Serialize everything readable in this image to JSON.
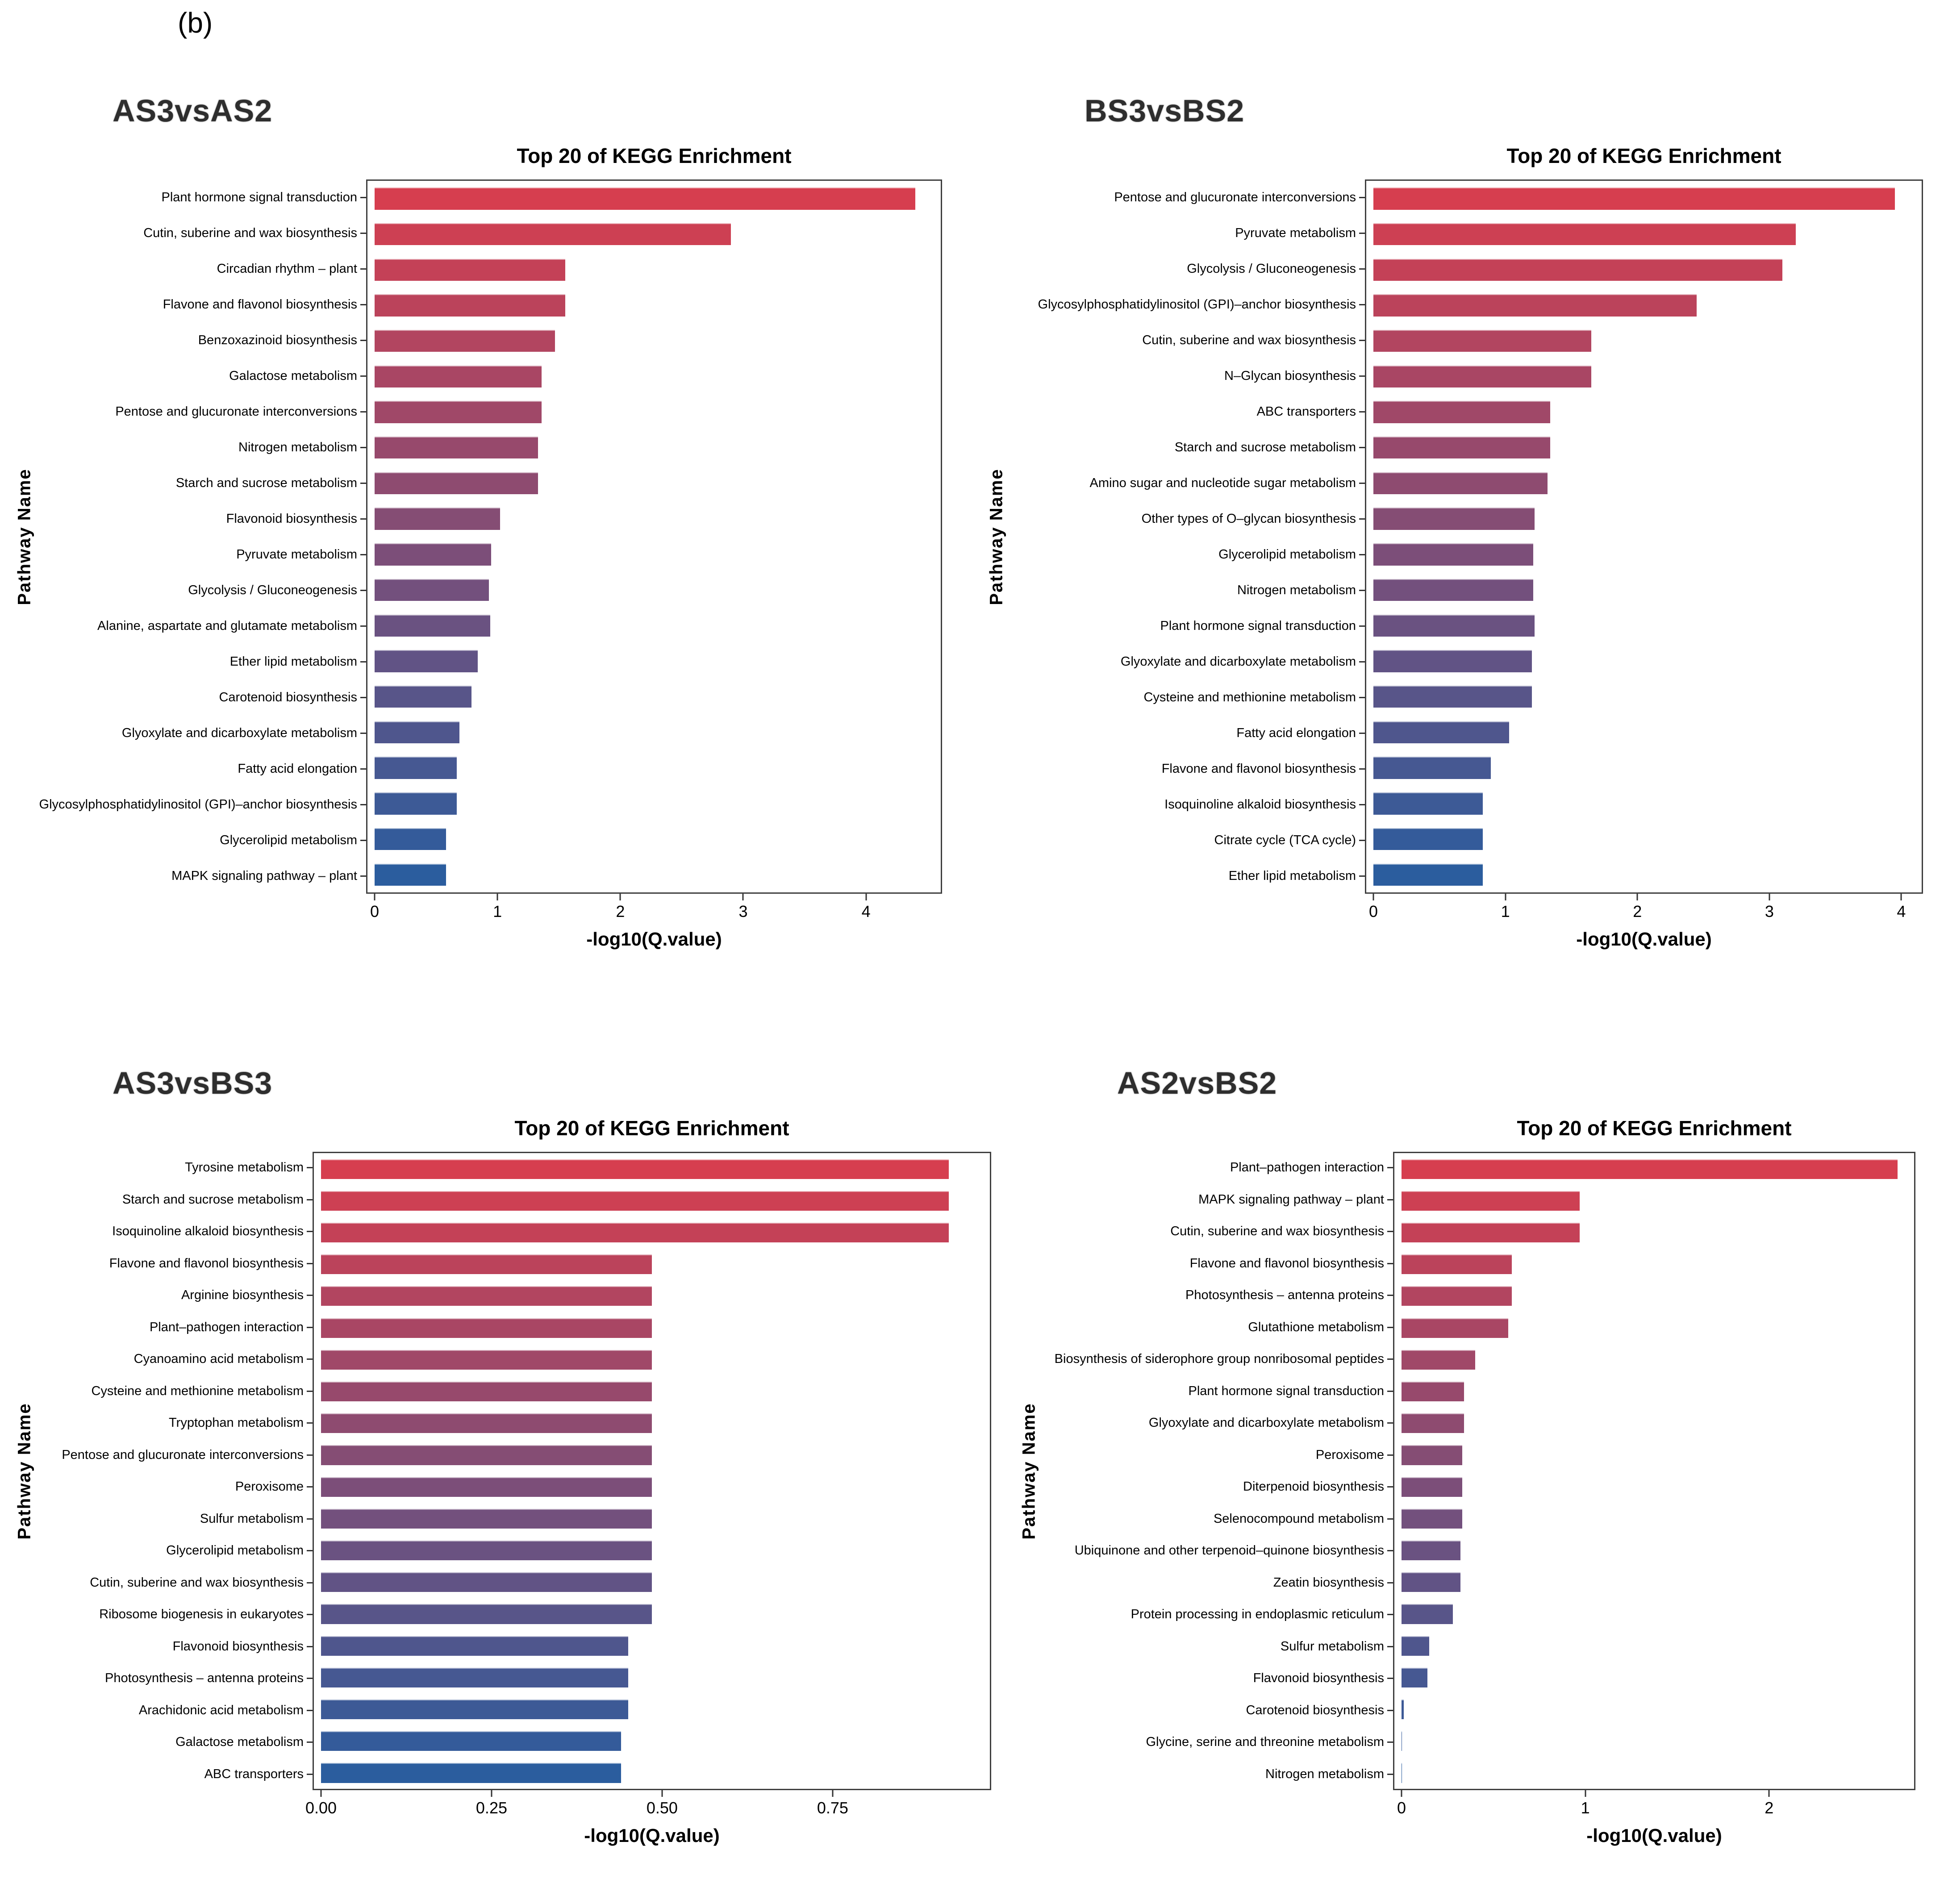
{
  "figure_label": "(b)",
  "palette": {
    "bar_gradient_high": "#d63e4f",
    "bar_gradient_low": "#2b5d9e",
    "panel_border": "#3f3f3f"
  },
  "chart_data": [
    {
      "type": "bar",
      "orientation": "horizontal",
      "comparison": "AS3vsAS2",
      "title": "Top 20 of KEGG Enrichment",
      "xlabel": "-log10(Q.value)",
      "ylabel": "Pathway Name",
      "xlim": [
        0,
        4.55
      ],
      "grid": false,
      "xticks": {
        "values": [
          0,
          1,
          2,
          3,
          4
        ],
        "labels": [
          "0",
          "1",
          "2",
          "3",
          "4"
        ]
      },
      "categories": [
        "Plant hormone signal transduction",
        "Cutin, suberine and wax biosynthesis",
        "Circadian rhythm – plant",
        "Flavone and flavonol biosynthesis",
        "Benzoxazinoid biosynthesis",
        "Galactose metabolism",
        "Pentose and glucuronate interconversions",
        "Nitrogen metabolism",
        "Starch and sucrose metabolism",
        "Flavonoid biosynthesis",
        "Pyruvate metabolism",
        "Glycolysis / Gluconeogenesis",
        "Alanine, aspartate and glutamate metabolism",
        "Ether lipid metabolism",
        "Carotenoid biosynthesis",
        "Glyoxylate and dicarboxylate metabolism",
        "Fatty acid elongation",
        "Glycosylphosphatidylinositol (GPI)–anchor biosynthesis",
        "Glycerolipid metabolism",
        "MAPK signaling pathway – plant"
      ],
      "values": [
        4.4,
        2.9,
        1.55,
        1.55,
        1.47,
        1.36,
        1.36,
        1.33,
        1.33,
        1.02,
        0.95,
        0.93,
        0.94,
        0.84,
        0.79,
        0.69,
        0.67,
        0.67,
        0.58,
        0.58
      ]
    },
    {
      "type": "bar",
      "orientation": "horizontal",
      "comparison": "BS3vsBS2",
      "title": "Top 20 of KEGG Enrichment",
      "xlabel": "-log10(Q.value)",
      "ylabel": "Pathway Name",
      "xlim": [
        0,
        4.1
      ],
      "grid": false,
      "xticks": {
        "values": [
          0,
          1,
          2,
          3,
          4
        ],
        "labels": [
          "0",
          "1",
          "2",
          "3",
          "4"
        ]
      },
      "categories": [
        "Pentose and glucuronate interconversions",
        "Pyruvate metabolism",
        "Glycolysis / Gluconeogenesis",
        "Glycosylphosphatidylinositol (GPI)–anchor biosynthesis",
        "Cutin, suberine and wax biosynthesis",
        "N–Glycan biosynthesis",
        "ABC transporters",
        "Starch and sucrose metabolism",
        "Amino sugar and nucleotide sugar metabolism",
        "Other types of O–glycan biosynthesis",
        "Glycerolipid metabolism",
        "Nitrogen metabolism",
        "Plant hormone signal transduction",
        "Glyoxylate and dicarboxylate metabolism",
        "Cysteine and methionine metabolism",
        "Fatty acid elongation",
        "Flavone and flavonol biosynthesis",
        "Isoquinoline alkaloid biosynthesis",
        "Citrate cycle (TCA cycle)",
        "Ether lipid metabolism"
      ],
      "values": [
        3.95,
        3.2,
        3.1,
        2.45,
        1.65,
        1.65,
        1.34,
        1.34,
        1.32,
        1.22,
        1.21,
        1.21,
        1.22,
        1.2,
        1.2,
        1.03,
        0.89,
        0.83,
        0.83,
        0.83
      ]
    },
    {
      "type": "bar",
      "orientation": "horizontal",
      "comparison": "AS3vsBS3",
      "title": "Top 20 of KEGG Enrichment",
      "xlabel": "-log10(Q.value)",
      "ylabel": "Pathway Name",
      "xlim": [
        0,
        0.97
      ],
      "grid": false,
      "xticks": {
        "values": [
          0,
          0.25,
          0.5,
          0.75
        ],
        "labels": [
          "0.00",
          "0.25",
          "0.50",
          "0.75"
        ]
      },
      "categories": [
        "Tyrosine metabolism",
        "Starch and sucrose metabolism",
        "Isoquinoline alkaloid biosynthesis",
        "Flavone and flavonol biosynthesis",
        "Arginine biosynthesis",
        "Plant–pathogen interaction",
        "Cyanoamino acid metabolism",
        "Cysteine and methionine metabolism",
        "Tryptophan metabolism",
        "Pentose and glucuronate interconversions",
        "Peroxisome",
        "Sulfur metabolism",
        "Glycerolipid metabolism",
        "Cutin, suberine and wax biosynthesis",
        "Ribosome biogenesis in eukaryotes",
        "Flavonoid biosynthesis",
        "Photosynthesis – antenna proteins",
        "Arachidonic acid metabolism",
        "Galactose metabolism",
        "ABC transporters"
      ],
      "values": [
        0.92,
        0.92,
        0.92,
        0.485,
        0.485,
        0.485,
        0.485,
        0.485,
        0.485,
        0.485,
        0.485,
        0.485,
        0.485,
        0.485,
        0.485,
        0.45,
        0.45,
        0.45,
        0.44,
        0.44
      ]
    },
    {
      "type": "bar",
      "orientation": "horizontal",
      "comparison": "AS2vsBS2",
      "title": "Top 20 of KEGG Enrichment",
      "xlabel": "-log10(Q.value)",
      "ylabel": "Pathway Name",
      "xlim": [
        0,
        2.75
      ],
      "grid": false,
      "xticks": {
        "values": [
          0,
          1,
          2
        ],
        "labels": [
          "0",
          "1",
          "2"
        ]
      },
      "categories": [
        "Plant–pathogen interaction",
        "MAPK signaling pathway – plant",
        "Cutin, suberine and wax biosynthesis",
        "Flavone and flavonol biosynthesis",
        "Photosynthesis – antenna proteins",
        "Glutathione metabolism",
        "Biosynthesis of siderophore group nonribosomal peptides",
        "Plant hormone signal transduction",
        "Glyoxylate and dicarboxylate metabolism",
        "Peroxisome",
        "Diterpenoid biosynthesis",
        "Selenocompound metabolism",
        "Ubiquinone and other terpenoid–quinone biosynthesis",
        "Zeatin biosynthesis",
        "Protein processing in endoplasmic reticulum",
        "Sulfur metabolism",
        "Flavonoid biosynthesis",
        "Carotenoid biosynthesis",
        "Glycine, serine and threonine metabolism",
        "Nitrogen metabolism"
      ],
      "values": [
        2.7,
        0.97,
        0.97,
        0.6,
        0.6,
        0.58,
        0.4,
        0.34,
        0.34,
        0.33,
        0.33,
        0.33,
        0.32,
        0.32,
        0.28,
        0.15,
        0.14,
        0.012,
        0.002,
        0.002
      ]
    }
  ]
}
